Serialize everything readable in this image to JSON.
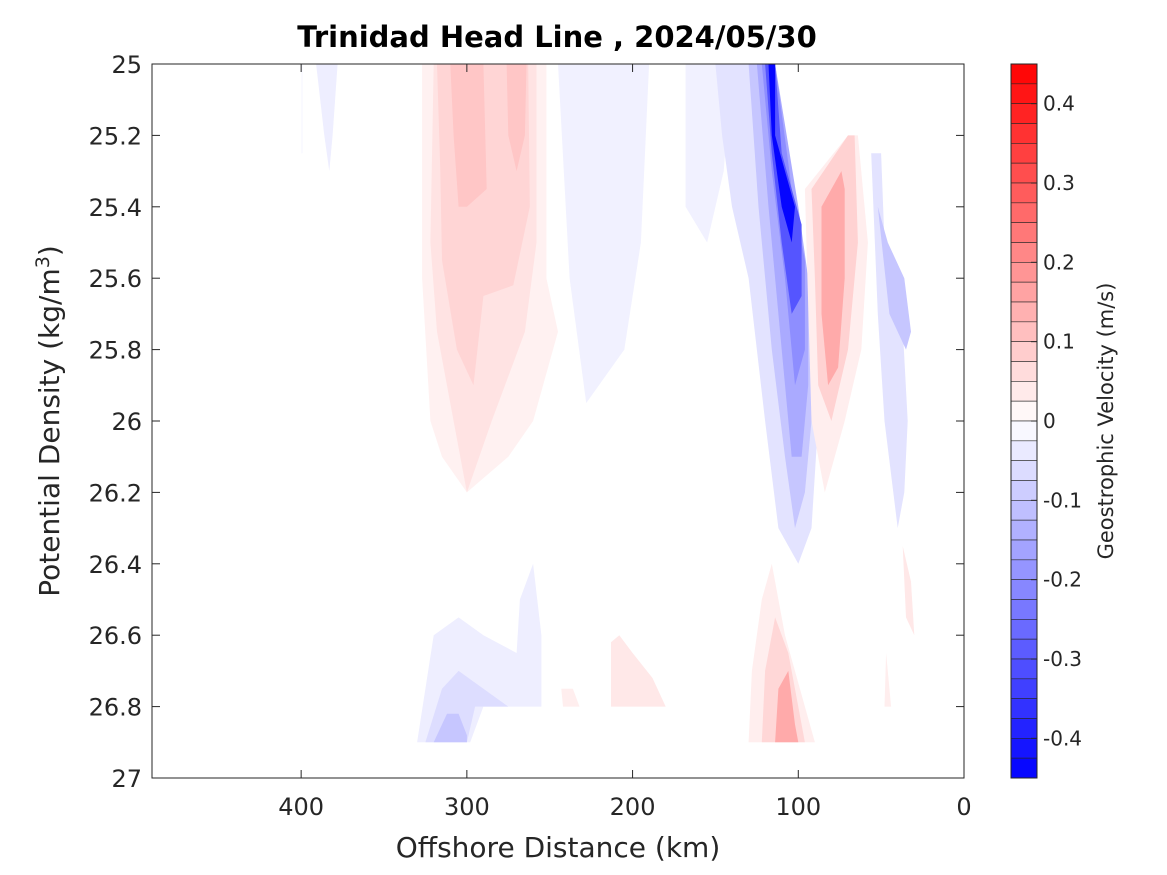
{
  "chart_data": {
    "type": "heatmap",
    "title": "Trinidad Head Line , 2024/05/30",
    "xlabel": "Offshore Distance (km)",
    "ylabel_main": "Potential Density (kg/m",
    "ylabel_sup": "3",
    "ylabel_close": ")",
    "xlim": [
      490,
      0
    ],
    "x_reversed": true,
    "ylim": [
      25,
      27
    ],
    "y_reversed": true,
    "x_ticks": [
      400,
      300,
      200,
      100,
      0
    ],
    "x_tick_labels": [
      "400",
      "300",
      "200",
      "100",
      "0"
    ],
    "y_ticks": [
      25,
      25.2,
      25.4,
      25.6,
      25.8,
      26,
      26.2,
      26.4,
      26.6,
      26.8,
      27
    ],
    "y_tick_labels": [
      "25",
      "25.2",
      "25.4",
      "25.6",
      "25.8",
      "26",
      "26.2",
      "26.4",
      "26.6",
      "26.8",
      "27"
    ],
    "colorbar": {
      "label": "Geostrophic Velocity (m/s)",
      "range": [
        -0.45,
        0.45
      ],
      "step": 0.025,
      "tick_values": [
        0.4,
        0.3,
        0.2,
        0.1,
        0,
        -0.1,
        -0.2,
        -0.3,
        -0.4
      ],
      "tick_labels": [
        "0.4",
        "0.3",
        "0.2",
        "0.1",
        "0",
        "-0.1",
        "-0.2",
        "-0.3",
        "-0.4"
      ],
      "positive_color": "#ff0000",
      "negative_color": "#0000ff",
      "zero_color": "#ffffff"
    },
    "features": [
      {
        "desc": "weak eastward band",
        "x": [
          400,
          399
        ],
        "y": [
          25,
          25.25
        ],
        "v": -0.01
      },
      {
        "desc": "weak southward lobe",
        "x": [
          390,
          370
        ],
        "y": [
          25,
          25.3
        ],
        "v": -0.02
      },
      {
        "desc": "positive core offshore",
        "x": [
          330,
          250
        ],
        "y": [
          25,
          26.2
        ],
        "v": 0.05
      },
      {
        "desc": "positive inner core",
        "x": [
          320,
          260
        ],
        "y": [
          25,
          25.7
        ],
        "v": 0.1
      },
      {
        "desc": "negative band",
        "x": [
          260,
          130
        ],
        "y": [
          25,
          25.9
        ],
        "v": -0.03
      },
      {
        "desc": "strong nearshore jet",
        "x": [
          140,
          85
        ],
        "y": [
          25,
          26.4
        ],
        "v": -0.44
      },
      {
        "desc": "nearshore positive",
        "x": [
          95,
          60
        ],
        "y": [
          25.2,
          26.2
        ],
        "v": 0.15
      },
      {
        "desc": "coastal negative",
        "x": [
          55,
          30
        ],
        "y": [
          25.25,
          26.3
        ],
        "v": -0.12
      },
      {
        "desc": "deep negative",
        "x": [
          330,
          255
        ],
        "y": [
          26.55,
          26.9
        ],
        "v": -0.1
      },
      {
        "desc": "deep positive",
        "x": [
          210,
          170
        ],
        "y": [
          26.6,
          26.8
        ],
        "v": 0.04
      },
      {
        "desc": "deep nearshore positive",
        "x": [
          130,
          85
        ],
        "y": [
          26.35,
          26.9
        ],
        "v": 0.18
      },
      {
        "desc": "coastal deep positive",
        "x": [
          45,
          30
        ],
        "y": [
          26.3,
          26.8
        ],
        "v": 0.04
      }
    ]
  }
}
